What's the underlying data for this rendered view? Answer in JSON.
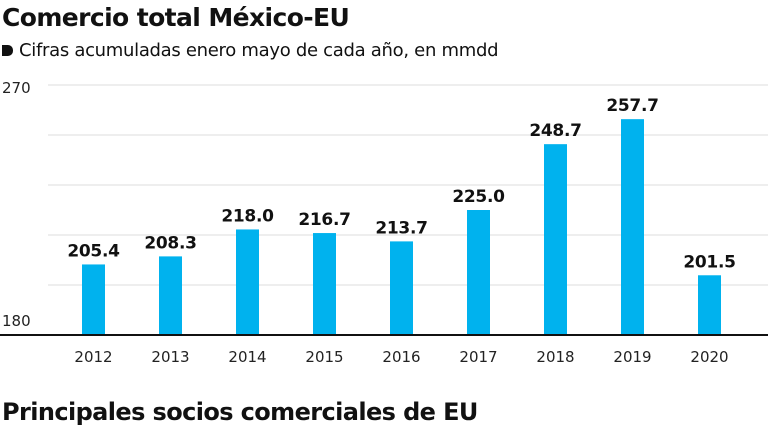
{
  "header": {
    "title": "Comercio total México-EU",
    "subtitle": "Cifras acumuladas enero mayo de cada año, en mmdd"
  },
  "footer": {
    "section_title": "Principales socios comerciales de EU"
  },
  "colors": {
    "bar": "#00B2EE",
    "grid": "#dddddd",
    "axis": "#111111"
  },
  "chart_data": {
    "type": "bar",
    "title": "Comercio total México-EU",
    "subtitle": "Cifras acumuladas enero mayo de cada año, en mmdd",
    "xlabel": "",
    "ylabel": "",
    "categories": [
      "2012",
      "2013",
      "2014",
      "2015",
      "2016",
      "2017",
      "2018",
      "2019",
      "2020"
    ],
    "values": [
      205.4,
      208.3,
      218.0,
      216.7,
      213.7,
      225.0,
      248.7,
      257.7,
      201.5
    ],
    "value_labels": [
      "205.4",
      "208.3",
      "218.0",
      "216.7",
      "213.7",
      "225.0",
      "248.7",
      "257.7",
      "201.5"
    ],
    "ylim": [
      180,
      270
    ],
    "yticks_labeled": [
      "270",
      "180"
    ],
    "gridlines": [
      270,
      252,
      234,
      216,
      198
    ],
    "grid": true,
    "legend": "none"
  }
}
